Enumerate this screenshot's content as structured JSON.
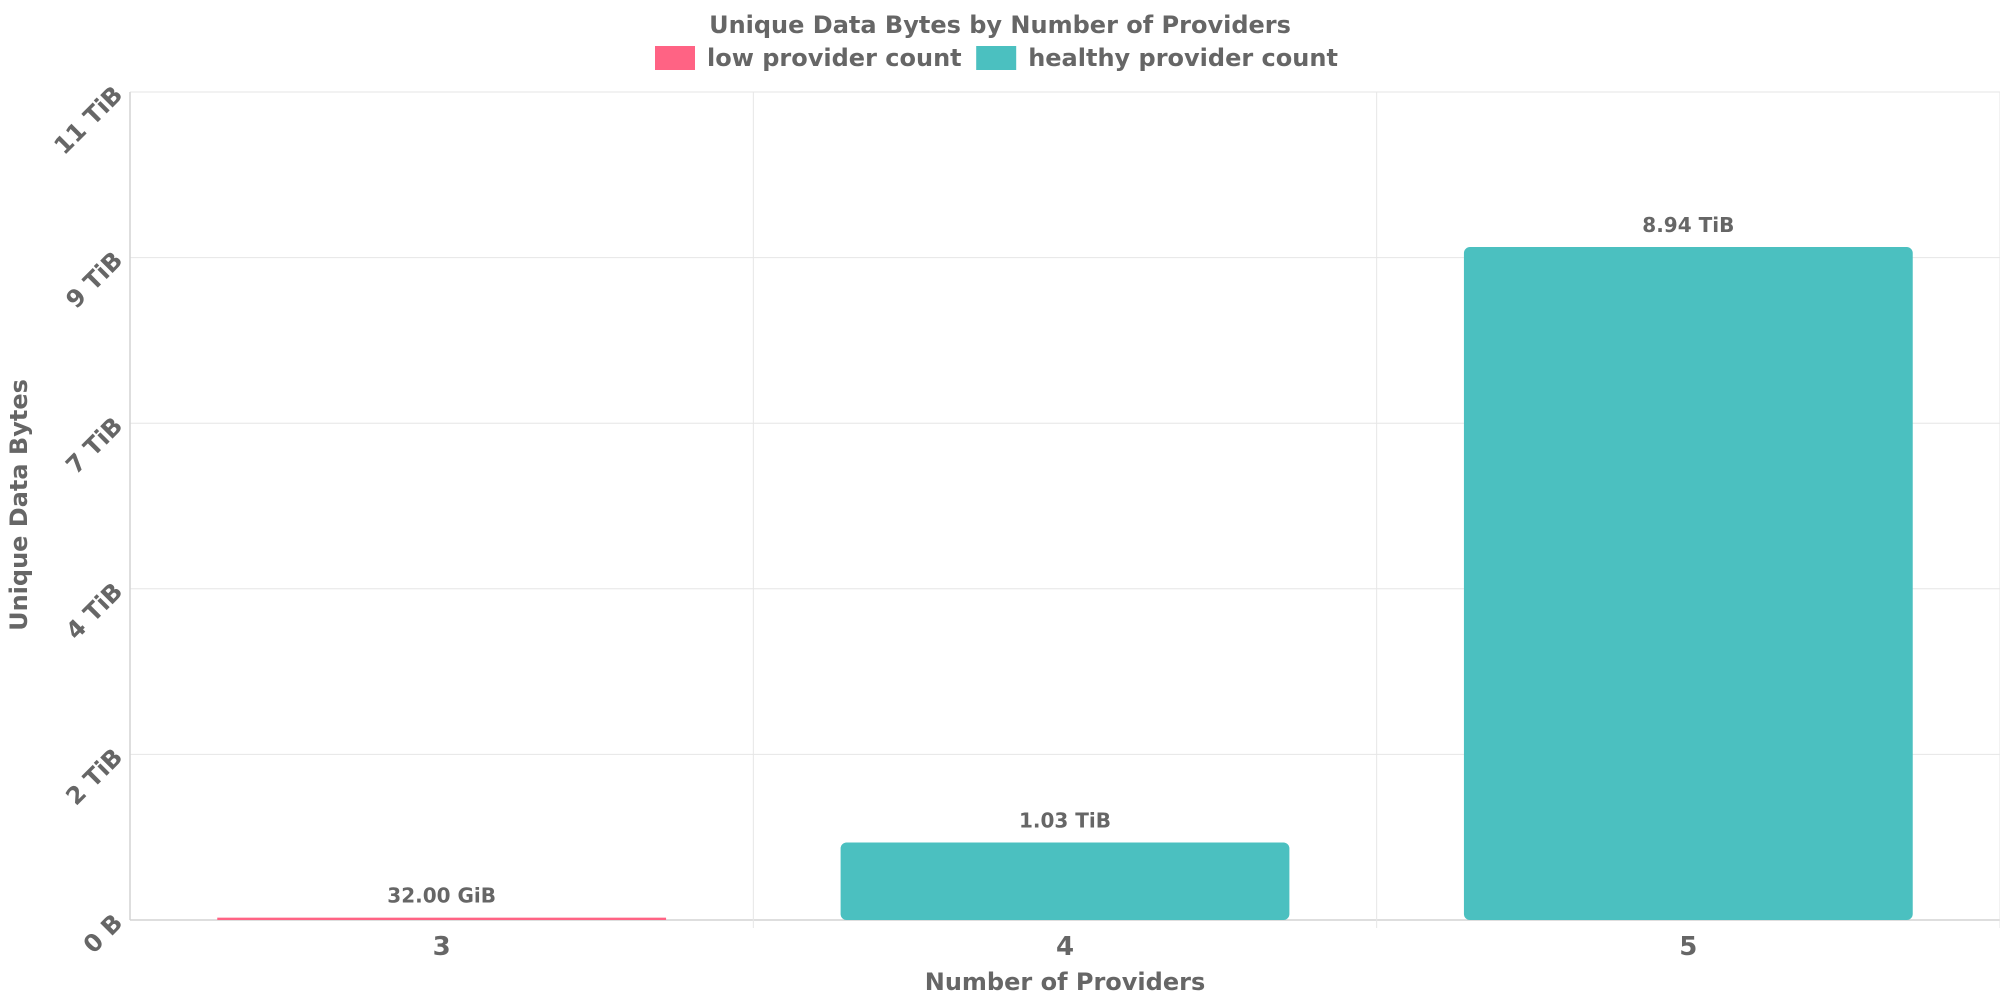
{
  "chart_data": {
    "type": "bar",
    "title": "Unique Data Bytes by Number of Providers",
    "xlabel": "Number of Providers",
    "ylabel": "Unique Data Bytes",
    "categories": [
      "3",
      "4",
      "5"
    ],
    "values_tib": [
      0.03125,
      1.03,
      8.94
    ],
    "data_labels": [
      "32.00 GiB",
      "1.03 TiB",
      "8.94 TiB"
    ],
    "bar_series": [
      "low provider count",
      "healthy provider count",
      "healthy provider count"
    ],
    "legend": [
      {
        "name": "low provider count",
        "color": "#ff6384"
      },
      {
        "name": "healthy provider count",
        "color": "#4bc0c0"
      }
    ],
    "y_ticks": [
      {
        "value": 0,
        "label": "0 B"
      },
      {
        "value": 2.2,
        "label": "2 TiB"
      },
      {
        "value": 4.4,
        "label": "4 TiB"
      },
      {
        "value": 6.6,
        "label": "7 TiB"
      },
      {
        "value": 8.8,
        "label": "9 TiB"
      },
      {
        "value": 11,
        "label": "11 TiB"
      }
    ],
    "ylim": [
      0,
      11
    ],
    "legend_position": "top",
    "grid": true
  }
}
